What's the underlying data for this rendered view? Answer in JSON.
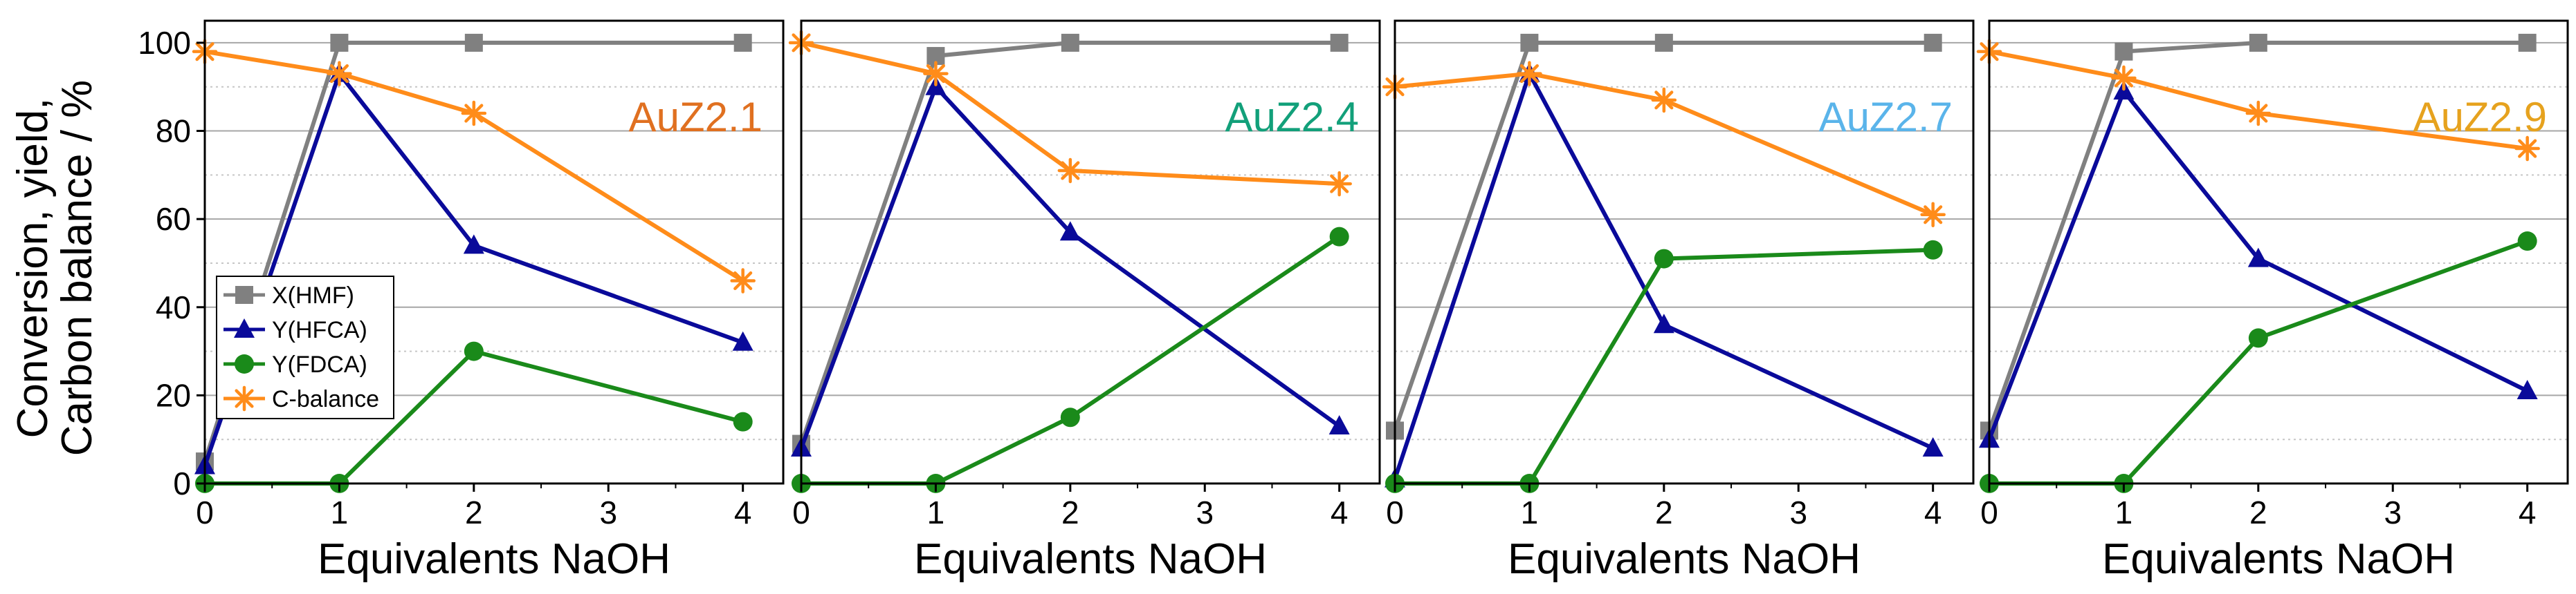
{
  "figure": {
    "ylabel_line1": "Conversion, yield,",
    "ylabel_line2": "Carbon balance / %"
  },
  "legend": {
    "entries": [
      {
        "label": "X(HMF)",
        "series": "X(HMF)"
      },
      {
        "label": "Y(HFCA)",
        "series": "Y(HFCA)"
      },
      {
        "label": "Y(FDCA)",
        "series": "Y(FDCA)"
      },
      {
        "label": "C-balance",
        "series": "C-balance"
      }
    ]
  },
  "colors": {
    "X(HMF)": "#808080",
    "Y(HFCA)": "#0a0a9a",
    "Y(FDCA)": "#1a8a1a",
    "C-balance": "#ff8c1a",
    "AuZ2.1": "#e07020",
    "AuZ2.4": "#12a07a",
    "AuZ2.7": "#5ab4ea",
    "AuZ2.9": "#e6a21e"
  },
  "chart_data": [
    {
      "type": "line",
      "title": "AuZ2.1",
      "xlabel": "Equivalents NaOH",
      "ylabel": "Conversion, yield, Carbon balance / %",
      "xlim": [
        0,
        4.3
      ],
      "ylim": [
        0,
        105
      ],
      "xticks": [
        0,
        1,
        2,
        3,
        4
      ],
      "yticks": [
        0,
        20,
        40,
        60,
        80,
        100
      ],
      "x": [
        0,
        1,
        2,
        4
      ],
      "series": [
        {
          "name": "X(HMF)",
          "marker": "square",
          "values": [
            5,
            100,
            100,
            100
          ]
        },
        {
          "name": "Y(HFCA)",
          "marker": "triangle",
          "values": [
            4,
            93,
            54,
            32
          ]
        },
        {
          "name": "Y(FDCA)",
          "marker": "circle",
          "values": [
            0,
            0,
            30,
            14
          ]
        },
        {
          "name": "C-balance",
          "marker": "asterisk",
          "values": [
            98,
            93,
            84,
            46
          ]
        }
      ]
    },
    {
      "type": "line",
      "title": "AuZ2.4",
      "xlabel": "Equivalents NaOH",
      "xlim": [
        0,
        4.3
      ],
      "ylim": [
        0,
        105
      ],
      "xticks": [
        0,
        1,
        2,
        3,
        4
      ],
      "yticks": [
        0,
        20,
        40,
        60,
        80,
        100
      ],
      "x": [
        0,
        1,
        2,
        4
      ],
      "series": [
        {
          "name": "X(HMF)",
          "marker": "square",
          "values": [
            9,
            97,
            100,
            100
          ]
        },
        {
          "name": "Y(HFCA)",
          "marker": "triangle",
          "values": [
            8,
            90,
            57,
            13
          ]
        },
        {
          "name": "Y(FDCA)",
          "marker": "circle",
          "values": [
            0,
            0,
            15,
            56
          ]
        },
        {
          "name": "C-balance",
          "marker": "asterisk",
          "values": [
            100,
            93,
            71,
            68
          ]
        }
      ]
    },
    {
      "type": "line",
      "title": "AuZ2.7",
      "xlabel": "Equivalents NaOH",
      "xlim": [
        0,
        4.3
      ],
      "ylim": [
        0,
        105
      ],
      "xticks": [
        0,
        1,
        2,
        3,
        4
      ],
      "yticks": [
        0,
        20,
        40,
        60,
        80,
        100
      ],
      "x": [
        0,
        1,
        2,
        4
      ],
      "series": [
        {
          "name": "X(HMF)",
          "marker": "square",
          "values": [
            12,
            100,
            100,
            100
          ]
        },
        {
          "name": "Y(HFCA)",
          "marker": "triangle",
          "values": [
            1,
            93,
            36,
            8
          ]
        },
        {
          "name": "Y(FDCA)",
          "marker": "circle",
          "values": [
            0,
            0,
            51,
            53
          ]
        },
        {
          "name": "C-balance",
          "marker": "asterisk",
          "values": [
            90,
            93,
            87,
            61
          ]
        }
      ]
    },
    {
      "type": "line",
      "title": "AuZ2.9",
      "xlabel": "Equivalents NaOH",
      "xlim": [
        0,
        4.3
      ],
      "ylim": [
        0,
        105
      ],
      "xticks": [
        0,
        1,
        2,
        3,
        4
      ],
      "yticks": [
        0,
        20,
        40,
        60,
        80,
        100
      ],
      "x": [
        0,
        1,
        2,
        4
      ],
      "series": [
        {
          "name": "X(HMF)",
          "marker": "square",
          "values": [
            12,
            98,
            100,
            100
          ]
        },
        {
          "name": "Y(HFCA)",
          "marker": "triangle",
          "values": [
            10,
            89,
            51,
            21
          ]
        },
        {
          "name": "Y(FDCA)",
          "marker": "circle",
          "values": [
            0,
            0,
            33,
            55
          ]
        },
        {
          "name": "C-balance",
          "marker": "asterisk",
          "values": [
            98,
            92,
            84,
            76
          ]
        }
      ]
    }
  ]
}
